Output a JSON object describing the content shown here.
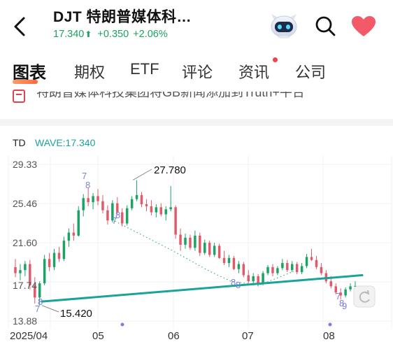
{
  "header": {
    "back_icon": "chevron-left-icon",
    "title": "DJT  特朗普媒体科…",
    "price": "17.340",
    "price_arrow": "⬆",
    "change": "+0.350",
    "change_pct": "+2.06%",
    "up_color": "#1aa363",
    "robot_icon": "robot-assistant-icon",
    "search_icon": "search-icon",
    "favorite_icon": "heart-icon",
    "favorite_color": "#f25a6a"
  },
  "tabs": [
    {
      "label": "图表",
      "active": true
    },
    {
      "label": "期权",
      "active": false
    },
    {
      "label": "ETF",
      "active": false
    },
    {
      "label": "评论",
      "active": false
    },
    {
      "label": "资讯",
      "active": false,
      "badge": true
    },
    {
      "label": "公司",
      "active": false
    }
  ],
  "ticker": {
    "icon": "news-icon",
    "text": "特朗普媒体科技集团将GB新闻添加到Truth+平台"
  },
  "indicator": {
    "name": "TD",
    "wave_label": "WAVE:17.340",
    "color": "#1aa39a"
  },
  "chart_data": {
    "type": "candlestick",
    "y_ticks": [
      "29.33",
      "25.46",
      "21.60",
      "17.74",
      "13.88"
    ],
    "ylim": [
      13.88,
      29.33
    ],
    "x_ticks": [
      "2025/04",
      "05",
      "06",
      "07",
      "08"
    ],
    "annotations": {
      "high": "27.780",
      "low": "15.420"
    },
    "td_labels": [
      "7",
      "8",
      "8",
      "7",
      "8",
      "8",
      "7",
      "8",
      "9"
    ],
    "rise_color": "#1aa363",
    "fall_color": "#e05a6a",
    "candles": [
      [
        19.2,
        20.0,
        18.2,
        18.6
      ],
      [
        18.6,
        19.5,
        17.9,
        18.9
      ],
      [
        18.9,
        19.8,
        18.3,
        19.5
      ],
      [
        19.5,
        19.9,
        17.0,
        17.4
      ],
      [
        17.4,
        18.2,
        15.6,
        16.2
      ],
      [
        16.2,
        17.8,
        15.42,
        17.6
      ],
      [
        17.6,
        20.4,
        17.4,
        20.0
      ],
      [
        20.0,
        20.6,
        18.8,
        19.2
      ],
      [
        19.2,
        21.0,
        18.9,
        20.6
      ],
      [
        20.6,
        21.2,
        19.7,
        20.0
      ],
      [
        20.0,
        22.2,
        19.8,
        21.8
      ],
      [
        21.8,
        23.0,
        21.2,
        22.6
      ],
      [
        22.6,
        23.5,
        21.8,
        22.3
      ],
      [
        22.3,
        25.2,
        22.2,
        24.8
      ],
      [
        24.8,
        26.4,
        24.2,
        26.0
      ],
      [
        26.0,
        27.0,
        25.2,
        25.6
      ],
      [
        25.6,
        26.5,
        24.9,
        26.2
      ],
      [
        26.2,
        26.9,
        25.3,
        25.7
      ],
      [
        25.7,
        26.3,
        24.5,
        24.8
      ],
      [
        24.8,
        25.3,
        23.4,
        23.8
      ],
      [
        23.8,
        25.8,
        23.6,
        25.5
      ],
      [
        25.5,
        26.1,
        24.4,
        24.6
      ],
      [
        24.6,
        25.0,
        23.2,
        23.5
      ],
      [
        23.5,
        25.3,
        23.3,
        25.0
      ],
      [
        25.0,
        26.2,
        24.8,
        25.9
      ],
      [
        25.9,
        27.78,
        25.7,
        26.3
      ],
      [
        26.3,
        26.6,
        25.1,
        25.4
      ],
      [
        25.4,
        25.9,
        24.7,
        25.2
      ],
      [
        25.2,
        25.8,
        24.3,
        24.6
      ],
      [
        24.6,
        25.4,
        24.1,
        25.1
      ],
      [
        25.1,
        25.5,
        24.2,
        24.4
      ],
      [
        24.4,
        25.2,
        23.8,
        24.9
      ],
      [
        24.9,
        27.2,
        24.7,
        25.1
      ],
      [
        25.1,
        25.3,
        22.0,
        22.4
      ],
      [
        22.4,
        23.0,
        20.8,
        21.4
      ],
      [
        21.4,
        22.5,
        21.0,
        22.1
      ],
      [
        22.1,
        22.4,
        20.9,
        21.1
      ],
      [
        21.1,
        22.8,
        20.8,
        22.3
      ],
      [
        22.3,
        22.6,
        20.3,
        20.6
      ],
      [
        20.6,
        21.9,
        20.4,
        21.6
      ],
      [
        21.6,
        21.8,
        20.2,
        20.4
      ],
      [
        20.4,
        21.6,
        20.2,
        21.3
      ],
      [
        21.3,
        21.5,
        20.0,
        20.1
      ],
      [
        20.1,
        20.8,
        19.4,
        19.6
      ],
      [
        19.6,
        20.4,
        19.2,
        20.1
      ],
      [
        20.1,
        20.3,
        18.9,
        19.0
      ],
      [
        19.0,
        19.8,
        18.6,
        19.5
      ],
      [
        19.5,
        19.7,
        18.2,
        18.4
      ],
      [
        18.4,
        18.9,
        17.6,
        17.8
      ],
      [
        17.8,
        18.6,
        17.4,
        18.3
      ],
      [
        18.3,
        18.5,
        17.3,
        17.5
      ],
      [
        17.5,
        18.8,
        17.4,
        18.6
      ],
      [
        18.6,
        19.4,
        18.4,
        19.2
      ],
      [
        19.2,
        19.5,
        18.3,
        18.6
      ],
      [
        18.6,
        19.3,
        18.4,
        19.1
      ],
      [
        19.1,
        20.0,
        18.9,
        19.6
      ],
      [
        19.6,
        19.9,
        18.7,
        18.9
      ],
      [
        18.9,
        19.8,
        18.7,
        19.5
      ],
      [
        19.5,
        19.7,
        18.5,
        18.7
      ],
      [
        18.7,
        19.6,
        18.5,
        19.3
      ],
      [
        19.3,
        20.5,
        19.1,
        20.2
      ],
      [
        20.2,
        21.0,
        19.8,
        19.9
      ],
      [
        19.9,
        20.3,
        19.0,
        19.2
      ],
      [
        19.2,
        19.6,
        18.4,
        18.6
      ],
      [
        18.6,
        18.9,
        17.6,
        17.8
      ],
      [
        17.8,
        18.3,
        17.1,
        17.3
      ],
      [
        17.3,
        17.6,
        16.5,
        16.7
      ],
      [
        16.7,
        17.1,
        16.0,
        16.4
      ],
      [
        16.4,
        17.2,
        16.2,
        17.0
      ],
      [
        17.0,
        17.6,
        16.8,
        17.3
      ],
      [
        17.3,
        17.8,
        17.1,
        17.34
      ]
    ],
    "wave_line": {
      "start": [
        15.8,
        15.42
      ],
      "end": [
        18.4
      ]
    }
  }
}
